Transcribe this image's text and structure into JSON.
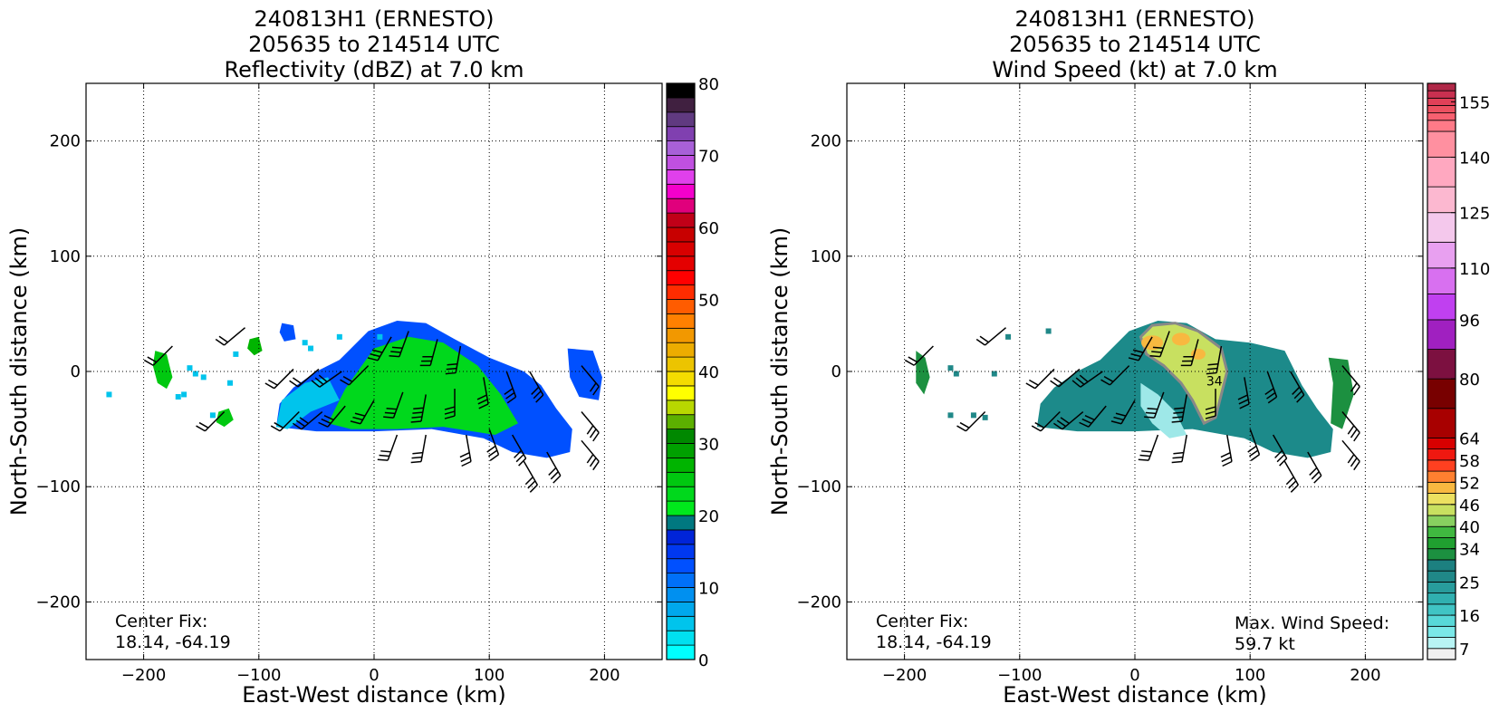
{
  "chart_data": [
    {
      "type": "heatmap",
      "title_lines": [
        "240813H1 (ERNESTO)",
        "205635 to 214514 UTC",
        "Reflectivity (dBZ) at 7.0 km"
      ],
      "xlabel": "East-West distance (km)",
      "ylabel": "North-South distance (km)",
      "xlim": [
        -250,
        250
      ],
      "ylim": [
        -250,
        250
      ],
      "xticks": [
        -200,
        -100,
        0,
        100,
        200
      ],
      "yticks": [
        -200,
        -100,
        0,
        100,
        200
      ],
      "xtick_labels": [
        "−200",
        "−100",
        "0",
        "100",
        "200"
      ],
      "ytick_labels": [
        "−200",
        "−100",
        "0",
        "100",
        "200"
      ],
      "grid": true,
      "annotation_lines": [
        "Center Fix:",
        "18.14, -64.19"
      ],
      "colorbar": {
        "min": 0,
        "max": 80,
        "ticks": [
          0,
          10,
          20,
          30,
          40,
          50,
          60,
          70,
          80
        ],
        "tick_labels": [
          "0",
          "10",
          "20",
          "30",
          "40",
          "50",
          "60",
          "70",
          "80"
        ],
        "colors": [
          "#00ffff",
          "#00e0f0",
          "#00c4ec",
          "#00a8ec",
          "#0090f0",
          "#0070f8",
          "#0050ff",
          "#0038f0",
          "#0024d8",
          "#007880",
          "#00e81c",
          "#00d81c",
          "#00c810",
          "#00b400",
          "#00a000",
          "#008800",
          "#5cb000",
          "#b8d800",
          "#ffff00",
          "#f4dc00",
          "#ecc400",
          "#ecac00",
          "#f29800",
          "#ff8000",
          "#ff5c00",
          "#ff2c00",
          "#ff0000",
          "#e40000",
          "#d80000",
          "#c80000",
          "#c00018",
          "#e0007c",
          "#f400cc",
          "#e040ec",
          "#c050e0",
          "#a860d8",
          "#8040b0",
          "#603a80",
          "#402040",
          "#000000"
        ]
      },
      "features": {
        "main_band": [
          [
            -85,
            -48
          ],
          [
            -82,
            -28
          ],
          [
            -70,
            -14
          ],
          [
            -50,
            0
          ],
          [
            -30,
            10
          ],
          [
            -5,
            35
          ],
          [
            20,
            44
          ],
          [
            45,
            42
          ],
          [
            70,
            28
          ],
          [
            100,
            12
          ],
          [
            130,
            0
          ],
          [
            145,
            -12
          ],
          [
            158,
            -32
          ],
          [
            172,
            -50
          ],
          [
            170,
            -70
          ],
          [
            150,
            -75
          ],
          [
            120,
            -70
          ],
          [
            95,
            -58
          ],
          [
            50,
            -50
          ],
          [
            0,
            -52
          ],
          [
            -50,
            -52
          ]
        ],
        "inner_core": [
          [
            -40,
            -45
          ],
          [
            -25,
            -15
          ],
          [
            0,
            20
          ],
          [
            30,
            30
          ],
          [
            60,
            25
          ],
          [
            90,
            5
          ],
          [
            110,
            -20
          ],
          [
            125,
            -45
          ],
          [
            105,
            -55
          ],
          [
            60,
            -48
          ],
          [
            20,
            -50
          ],
          [
            -20,
            -50
          ]
        ],
        "cyan_edge": [
          [
            -85,
            -48
          ],
          [
            -80,
            -25
          ],
          [
            -60,
            -10
          ],
          [
            -40,
            -5
          ],
          [
            -30,
            -25
          ],
          [
            -55,
            -35
          ],
          [
            -75,
            -50
          ]
        ],
        "east_blob": [
          [
            168,
            20
          ],
          [
            190,
            18
          ],
          [
            198,
            -5
          ],
          [
            195,
            -25
          ],
          [
            178,
            -22
          ],
          [
            170,
            -5
          ]
        ],
        "west_blob": [
          [
            -190,
            18
          ],
          [
            -180,
            15
          ],
          [
            -175,
            -5
          ],
          [
            -180,
            -15
          ],
          [
            -188,
            -10
          ],
          [
            -192,
            5
          ]
        ],
        "sw_blob": [
          [
            -135,
            -35
          ],
          [
            -126,
            -32
          ],
          [
            -122,
            -42
          ],
          [
            -130,
            -48
          ],
          [
            -137,
            -44
          ]
        ],
        "nw_blob": [
          [
            -108,
            28
          ],
          [
            -100,
            30
          ],
          [
            -97,
            18
          ],
          [
            -104,
            14
          ],
          [
            -110,
            20
          ]
        ],
        "n_blob": [
          [
            -80,
            42
          ],
          [
            -70,
            40
          ],
          [
            -68,
            28
          ],
          [
            -78,
            26
          ],
          [
            -82,
            34
          ]
        ],
        "scatter": [
          [
            -160,
            3
          ],
          [
            -155,
            -2
          ],
          [
            -148,
            -5
          ],
          [
            -170,
            -22
          ],
          [
            -165,
            -20
          ],
          [
            -120,
            15
          ],
          [
            -125,
            -10
          ],
          [
            -140,
            -38
          ],
          [
            -230,
            -20
          ],
          [
            -60,
            25
          ],
          [
            -55,
            20
          ],
          [
            -30,
            30
          ],
          [
            5,
            30
          ]
        ]
      },
      "barbs": [
        [
          -175,
          22,
          18,
          225
        ],
        [
          -112,
          38,
          19,
          230
        ],
        [
          -70,
          2,
          20,
          225
        ],
        [
          -48,
          2,
          22,
          230
        ],
        [
          -28,
          0,
          25,
          235
        ],
        [
          -5,
          5,
          22,
          225
        ],
        [
          15,
          30,
          25,
          210
        ],
        [
          30,
          35,
          30,
          200
        ],
        [
          55,
          28,
          30,
          195
        ],
        [
          75,
          22,
          28,
          190
        ],
        [
          -65,
          -35,
          22,
          225
        ],
        [
          -45,
          -35,
          25,
          230
        ],
        [
          -25,
          -30,
          25,
          220
        ],
        [
          0,
          -25,
          28,
          210
        ],
        [
          25,
          -18,
          30,
          200
        ],
        [
          45,
          -20,
          35,
          190
        ],
        [
          70,
          -15,
          32,
          180
        ],
        [
          95,
          -5,
          30,
          170
        ],
        [
          115,
          0,
          28,
          160
        ],
        [
          135,
          0,
          25,
          150
        ],
        [
          20,
          -55,
          30,
          200
        ],
        [
          45,
          -55,
          32,
          190
        ],
        [
          80,
          -55,
          30,
          170
        ],
        [
          100,
          -50,
          30,
          160
        ],
        [
          120,
          -55,
          28,
          150
        ],
        [
          -130,
          -35,
          20,
          225
        ],
        [
          180,
          5,
          22,
          140
        ],
        [
          180,
          -35,
          25,
          140
        ],
        [
          180,
          -60,
          25,
          140
        ],
        [
          150,
          -70,
          25,
          150
        ],
        [
          130,
          -78,
          25,
          150
        ]
      ]
    },
    {
      "type": "heatmap",
      "title_lines": [
        "240813H1 (ERNESTO)",
        "205635 to 214514 UTC",
        "Wind Speed (kt) at 7.0 km"
      ],
      "xlabel": "East-West distance (km)",
      "ylabel": "North-South distance (km)",
      "xlim": [
        -250,
        250
      ],
      "ylim": [
        -250,
        250
      ],
      "xticks": [
        -200,
        -100,
        0,
        100,
        200
      ],
      "yticks": [
        -200,
        -100,
        0,
        100,
        200
      ],
      "xtick_labels": [
        "−200",
        "−100",
        "0",
        "100",
        "200"
      ],
      "ytick_labels": [
        "−200",
        "−100",
        "0",
        "100",
        "200"
      ],
      "grid": true,
      "annotation_lines": [
        "Center Fix:",
        "18.14, -64.19"
      ],
      "max_label_lines": [
        "Max. Wind Speed:",
        "59.7 kt"
      ],
      "contour_label": "34",
      "colorbar": {
        "min": 4,
        "max": 160,
        "ticks": [
          7,
          16,
          25,
          34,
          40,
          46,
          52,
          58,
          64,
          80,
          96,
          110,
          125,
          140,
          155
        ],
        "tick_labels": [
          "7",
          "16",
          "25",
          "34",
          "40",
          "46",
          "52",
          "58",
          "64",
          "80",
          "96",
          "110",
          "125",
          "140",
          "155"
        ],
        "colors": [
          "#f0f0f0",
          "#b8f4f4",
          "#7ae8e8",
          "#58d8d8",
          "#40c4c4",
          "#30b0b0",
          "#289c9c",
          "#208888",
          "#1c8080",
          "#1c9040",
          "#20a030",
          "#40b840",
          "#88d060",
          "#c8e060",
          "#ece060",
          "#f8b840",
          "#ff8030",
          "#ff4020",
          "#f01810",
          "#d80000",
          "#a80000",
          "#780000",
          "#7c1040",
          "#a020c0",
          "#c040f0",
          "#d870f0",
          "#e8a0f0",
          "#f4c8ec",
          "#fcb8d0",
          "#ffa8c0",
          "#ff90a0",
          "#ff7a88",
          "#f86070",
          "#ec5060",
          "#e04058",
          "#c83050",
          "#b02848",
          "#981840"
        ],
        "edges": [
          4,
          7,
          10,
          13,
          16,
          19,
          22,
          25,
          28,
          31,
          34,
          37,
          40,
          43,
          46,
          49,
          52,
          55,
          58,
          61,
          64,
          72,
          80,
          88,
          96,
          103,
          110,
          117,
          125,
          132,
          140,
          147,
          150,
          152,
          154,
          156,
          158,
          160
        ]
      },
      "features": {
        "main_band": [
          [
            -85,
            -48
          ],
          [
            -82,
            -28
          ],
          [
            -70,
            -14
          ],
          [
            -50,
            0
          ],
          [
            -30,
            10
          ],
          [
            -5,
            35
          ],
          [
            20,
            44
          ],
          [
            45,
            42
          ],
          [
            70,
            28
          ],
          [
            100,
            25
          ],
          [
            130,
            18
          ],
          [
            145,
            -12
          ],
          [
            158,
            -32
          ],
          [
            172,
            -50
          ],
          [
            170,
            -70
          ],
          [
            150,
            -75
          ],
          [
            120,
            -70
          ],
          [
            95,
            -58
          ],
          [
            50,
            -50
          ],
          [
            0,
            -52
          ],
          [
            -50,
            -52
          ]
        ],
        "yellow_core": [
          [
            5,
            30
          ],
          [
            15,
            40
          ],
          [
            35,
            42
          ],
          [
            55,
            35
          ],
          [
            75,
            20
          ],
          [
            80,
            0
          ],
          [
            75,
            -20
          ],
          [
            70,
            -40
          ],
          [
            60,
            -45
          ],
          [
            50,
            -25
          ],
          [
            40,
            -10
          ],
          [
            25,
            5
          ],
          [
            10,
            15
          ]
        ],
        "orange_spots": [
          [
            15,
            25,
            12,
            8
          ],
          [
            40,
            28,
            10,
            7
          ],
          [
            55,
            15,
            8,
            6
          ]
        ],
        "pale_region": [
          [
            5,
            -10
          ],
          [
            20,
            -20
          ],
          [
            35,
            -35
          ],
          [
            45,
            -55
          ],
          [
            30,
            -58
          ],
          [
            15,
            -45
          ],
          [
            5,
            -30
          ]
        ],
        "east_blob": [
          [
            168,
            12
          ],
          [
            185,
            10
          ],
          [
            190,
            -20
          ],
          [
            180,
            -50
          ],
          [
            170,
            -45
          ],
          [
            172,
            -10
          ]
        ],
        "west_blob": [
          [
            -190,
            18
          ],
          [
            -182,
            12
          ],
          [
            -178,
            -5
          ],
          [
            -183,
            -20
          ],
          [
            -190,
            -10
          ]
        ],
        "scatter": [
          [
            -160,
            3
          ],
          [
            -155,
            -2
          ],
          [
            -122,
            -2
          ],
          [
            -140,
            -38
          ],
          [
            -160,
            -38
          ],
          [
            -110,
            30
          ],
          [
            -75,
            35
          ],
          [
            -130,
            -40
          ]
        ]
      },
      "barbs": [
        [
          -175,
          22,
          18,
          225
        ],
        [
          -112,
          38,
          19,
          230
        ],
        [
          -70,
          2,
          20,
          225
        ],
        [
          -48,
          2,
          22,
          230
        ],
        [
          -28,
          0,
          25,
          235
        ],
        [
          -5,
          5,
          22,
          225
        ],
        [
          15,
          30,
          25,
          210
        ],
        [
          30,
          35,
          30,
          200
        ],
        [
          55,
          28,
          30,
          195
        ],
        [
          75,
          22,
          28,
          190
        ],
        [
          -65,
          -35,
          22,
          225
        ],
        [
          -45,
          -35,
          25,
          230
        ],
        [
          -25,
          -30,
          25,
          220
        ],
        [
          0,
          -25,
          28,
          210
        ],
        [
          25,
          -18,
          30,
          200
        ],
        [
          45,
          -20,
          35,
          190
        ],
        [
          70,
          -15,
          32,
          180
        ],
        [
          95,
          -5,
          30,
          170
        ],
        [
          115,
          0,
          28,
          160
        ],
        [
          135,
          0,
          25,
          150
        ],
        [
          20,
          -55,
          30,
          200
        ],
        [
          45,
          -55,
          32,
          190
        ],
        [
          80,
          -55,
          30,
          170
        ],
        [
          100,
          -50,
          30,
          160
        ],
        [
          120,
          -55,
          28,
          150
        ],
        [
          -130,
          -35,
          20,
          225
        ],
        [
          180,
          5,
          22,
          140
        ],
        [
          180,
          -35,
          25,
          140
        ],
        [
          180,
          -60,
          25,
          140
        ],
        [
          150,
          -70,
          25,
          150
        ],
        [
          130,
          -78,
          25,
          150
        ]
      ]
    }
  ]
}
